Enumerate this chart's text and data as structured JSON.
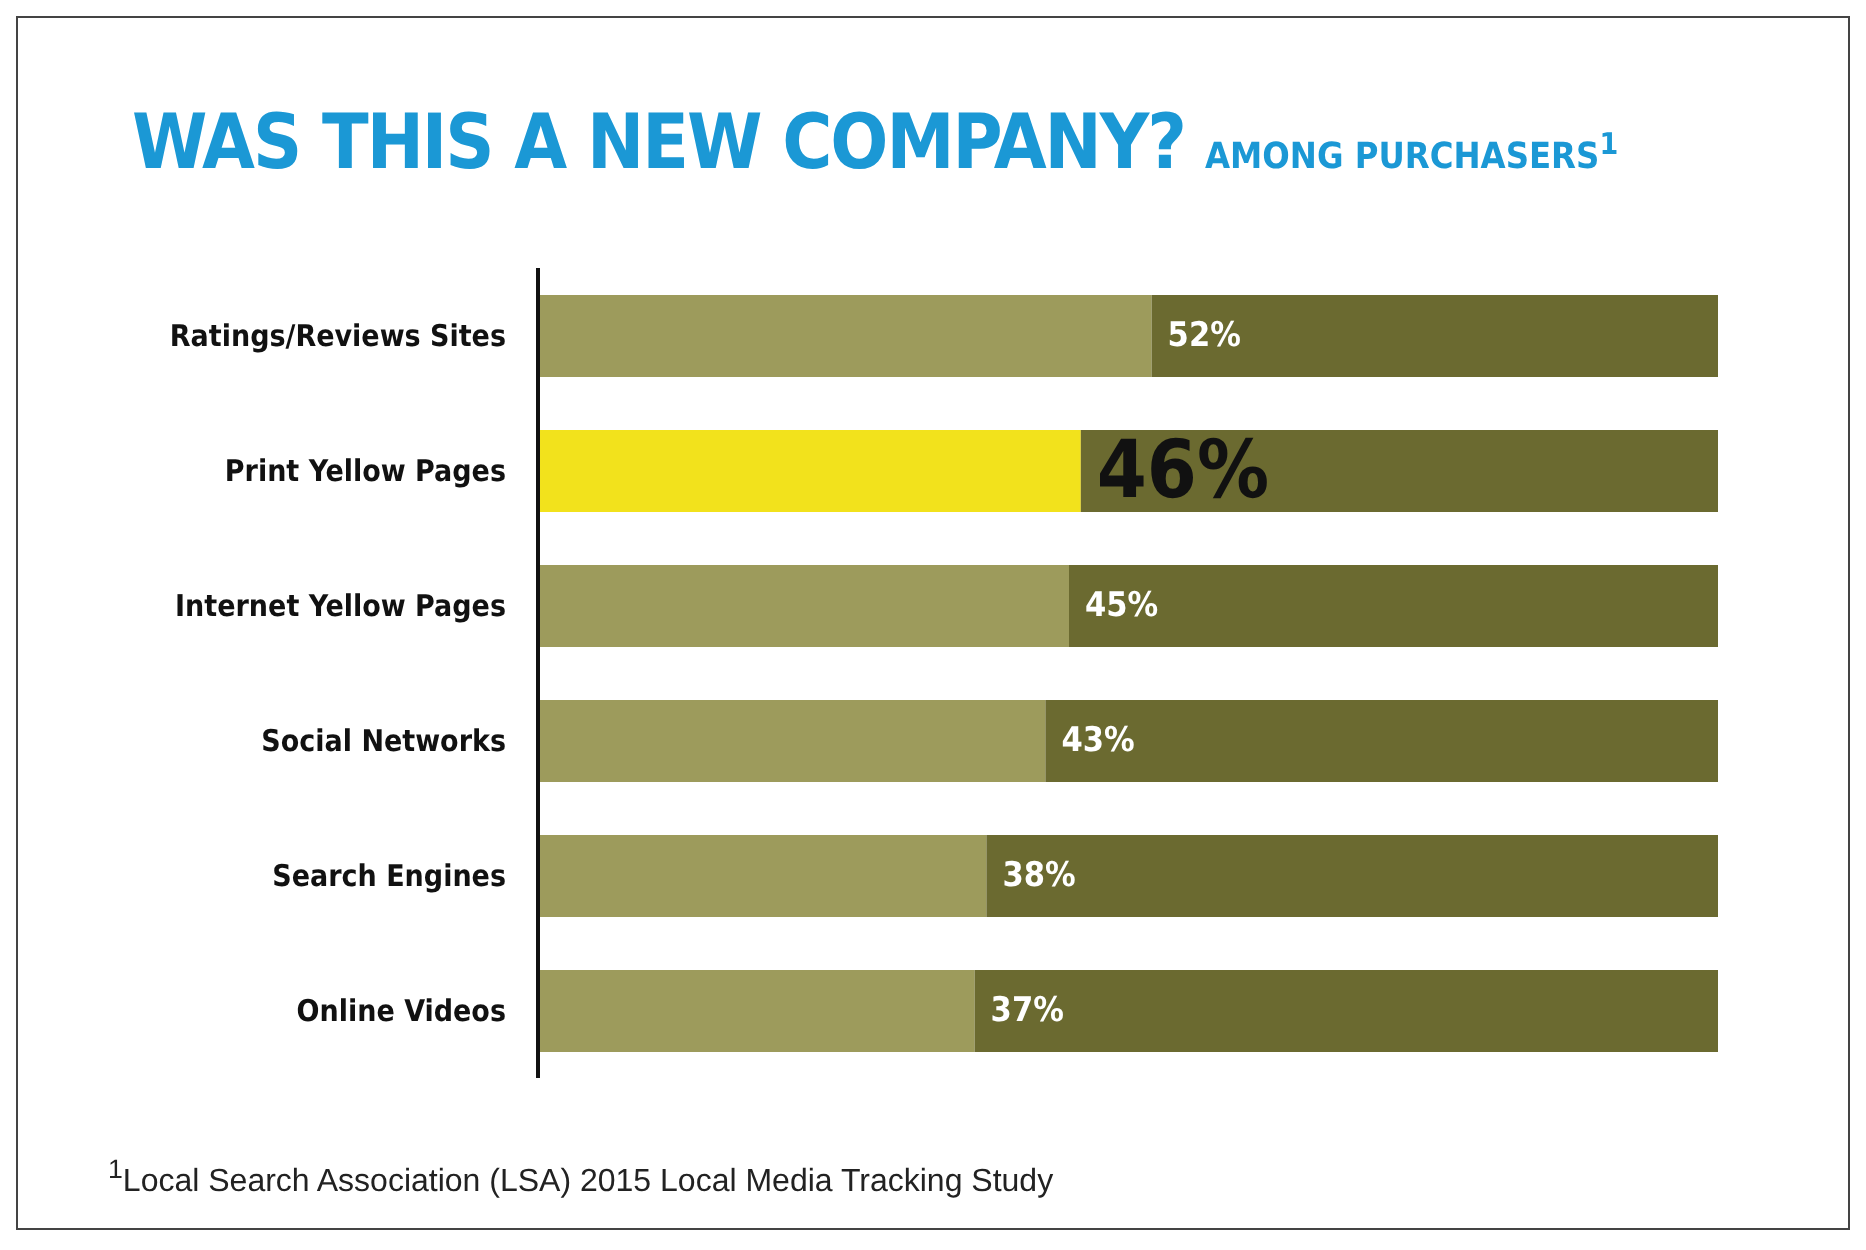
{
  "chart_data": {
    "type": "bar",
    "orientation": "horizontal",
    "stacked": true,
    "title": "WAS THIS A NEW COMPANY?",
    "subtitle": "AMONG PURCHASERS$^{1}$",
    "categories": [
      "Ratings/Reviews Sites",
      "Print Yellow Pages",
      "Internet Yellow Pages",
      "Social Networks",
      "Search Engines",
      "Online Videos"
    ],
    "series": [
      {
        "colors": [
          "#9d9b5c",
          "#f2e21c",
          "#9d9b5c",
          "#9d9b5c",
          "#9d9b5c",
          "#9d9b5c"
        ],
        "values": [
          52,
          46,
          45,
          43,
          38,
          37
        ],
        "value_labels": [
          "52%",
          "46%",
          "45%",
          "43%",
          "38%",
          "37%"
        ]
      },
      {
        "color": "#6b6a30",
        "values": [
          48,
          54,
          55,
          57,
          62,
          63
        ]
      }
    ],
    "legend": false,
    "annotations": [
      "$^{1}$Local Search Association (LSA) 2015 Local Media Tracking Study"
    ]
  }
}
